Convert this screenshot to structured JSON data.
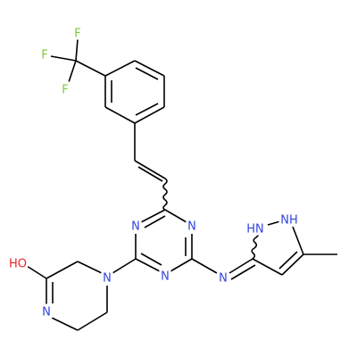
{
  "atoms": [
    "F",
    "F",
    "F",
    "N",
    "N",
    "N",
    "N",
    "HN",
    "NH",
    "N",
    "HO",
    "N"
  ]
}
